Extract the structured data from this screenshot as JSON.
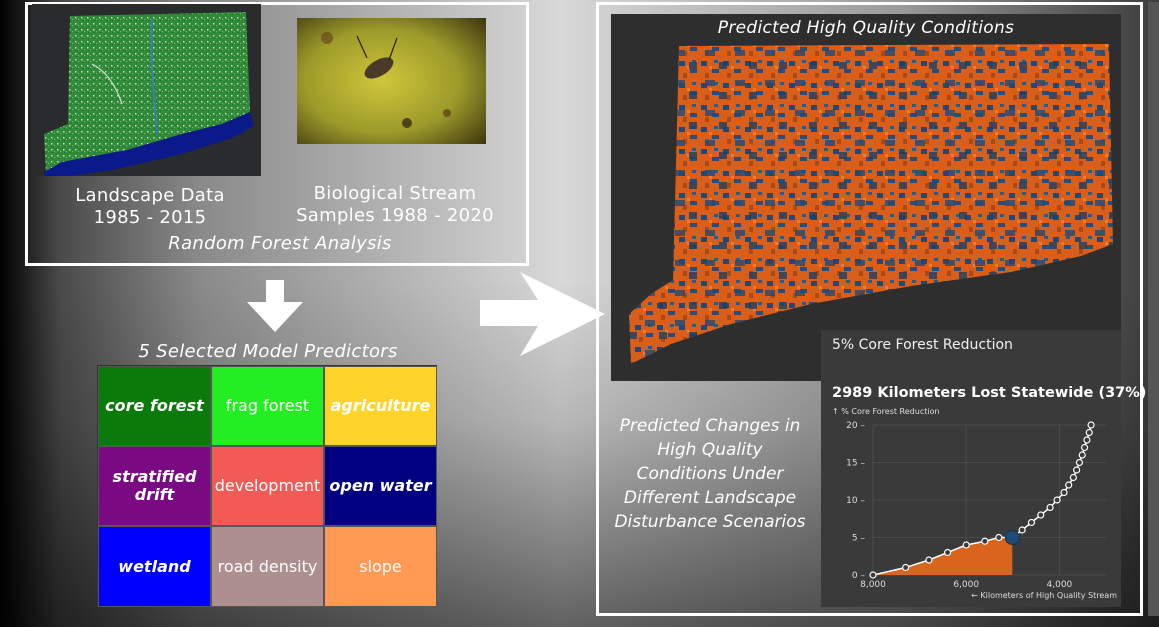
{
  "left_panel": {
    "landscape_caption": [
      "Landscape Data",
      "1985 - 2015"
    ],
    "bio_caption": [
      "Biological Stream",
      "Samples 1988 - 2020"
    ],
    "analysis_caption": "Random Forest Analysis"
  },
  "predictors": {
    "title": "5 Selected Model Predictors",
    "cells": [
      {
        "label": "core forest",
        "bg": "#0a7a0a",
        "fg": "#ffffff",
        "bold": true
      },
      {
        "label": "frag forest",
        "bg": "#22ee22",
        "fg": "#ffffff",
        "bold": false
      },
      {
        "label": "agriculture",
        "bg": "#ffd42a",
        "fg": "#ffffff",
        "bold": true
      },
      {
        "label": "stratified drift",
        "bg": "#7a0a82",
        "fg": "#ffffff",
        "bold": true
      },
      {
        "label": "development",
        "bg": "#f25a55",
        "fg": "#ffffff",
        "bold": false
      },
      {
        "label": "open water",
        "bg": "#000080",
        "fg": "#ffffff",
        "bold": true
      },
      {
        "label": "wetland",
        "bg": "#0000ff",
        "fg": "#ffffff",
        "bold": true
      },
      {
        "label": "road density",
        "bg": "#ad8f8f",
        "fg": "#ffffff",
        "bold": false
      },
      {
        "label": "slope",
        "bg": "#ff9a55",
        "fg": "#ffffff",
        "bold": false
      }
    ]
  },
  "map": {
    "title": "Predicted High Quality Conditions",
    "colors": {
      "high": "#e0661c",
      "low": "#1f4a78",
      "land": "#2e2e2e"
    }
  },
  "changes_caption": "Predicted Changes in High Quality Conditions Under Different Landscape Disturbance Scenarios",
  "chart_panel": {
    "scenario": "5% Core Forest Reduction",
    "headline": "2989 Kilometers Lost Statewide (37%)",
    "y_caption": "↑ % Core Forest Reduction",
    "x_caption": "← Kilometers of High Quality Stream"
  },
  "chart_data": {
    "type": "line",
    "xlabel": "← Kilometers of High Quality Stream",
    "ylabel": "↑ % Core Forest Reduction",
    "x_reversed": true,
    "xlim": [
      8000,
      3000
    ],
    "ylim": [
      0,
      20
    ],
    "x_ticks": [
      "8,000",
      "6,000",
      "4,000"
    ],
    "x_tick_values": [
      8000,
      6000,
      4000
    ],
    "y_ticks": [
      0,
      5,
      10,
      15,
      20
    ],
    "highlight": {
      "x": 5011,
      "y": 5
    },
    "x": [
      8000,
      7300,
      6800,
      6400,
      6000,
      5600,
      5300,
      5011,
      4800,
      4600,
      4400,
      4200,
      4050,
      3900,
      3800,
      3700,
      3630,
      3570,
      3510,
      3460,
      3410,
      3360,
      3320
    ],
    "y": [
      0,
      1,
      2,
      3,
      4,
      4.5,
      5,
      5,
      6,
      7,
      8,
      9,
      10,
      11,
      12,
      13,
      14,
      15,
      16,
      17,
      18,
      19,
      20
    ],
    "colors": {
      "fill": "#e0661c",
      "line": "#ffffff",
      "highlight": "#1f4a78"
    }
  }
}
